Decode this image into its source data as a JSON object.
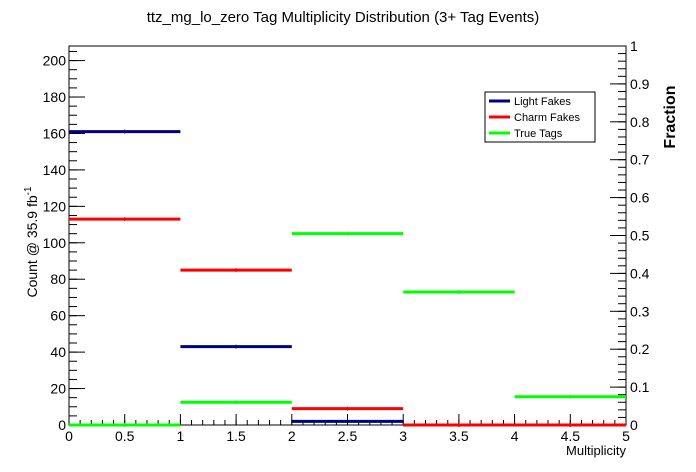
{
  "chart_data": {
    "type": "histogram",
    "title": "ttz_mg_lo_zero Tag Multiplicity Distribution (3+ Tag Events)",
    "xlabel": "Multiplicity",
    "ylabel_left": "Count @ 35.9 fb",
    "ylabel_left_superscript": "-1",
    "ylabel_right": "Fraction",
    "xlim": [
      0,
      5
    ],
    "ylim_left": [
      0,
      208
    ],
    "ylim_right": [
      0,
      1
    ],
    "x_ticks": [
      0,
      0.5,
      1,
      1.5,
      2,
      2.5,
      3,
      3.5,
      4,
      4.5,
      5
    ],
    "x_tick_labels": [
      "0",
      "0.5",
      "1",
      "1.5",
      "2",
      "2.5",
      "3",
      "3.5",
      "4",
      "4.5",
      "5"
    ],
    "y_left_ticks": [
      0,
      20,
      40,
      60,
      80,
      100,
      120,
      140,
      160,
      180,
      200
    ],
    "y_left_tick_labels": [
      "0",
      "20",
      "40",
      "60",
      "80",
      "100",
      "120",
      "140",
      "160",
      "180",
      "200"
    ],
    "y_right_ticks": [
      0,
      0.1,
      0.2,
      0.3,
      0.4,
      0.5,
      0.6,
      0.7,
      0.8,
      0.9,
      1
    ],
    "y_right_tick_labels": [
      "0",
      "0.1",
      "0.2",
      "0.3",
      "0.4",
      "0.5",
      "0.6",
      "0.7",
      "0.8",
      "0.9",
      "1"
    ],
    "bin_edges": [
      0,
      1,
      2,
      3,
      4,
      5
    ],
    "legend_position": "top-right",
    "series": [
      {
        "name": "Light Fakes",
        "color": "#000080",
        "values": [
          161,
          43,
          2,
          0,
          0
        ]
      },
      {
        "name": "Charm Fakes",
        "color": "#ff0000",
        "values": [
          113,
          85,
          9,
          0,
          0
        ]
      },
      {
        "name": "True Tags",
        "color": "#00ff00",
        "values": [
          0,
          12.5,
          105,
          73,
          15.5
        ]
      }
    ]
  }
}
